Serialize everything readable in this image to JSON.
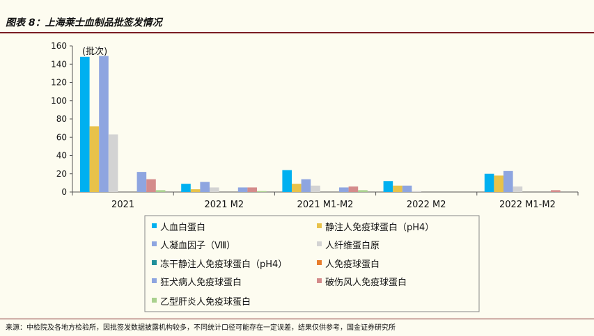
{
  "header": {
    "title": "图表 8：上海莱士血制品批签发情况"
  },
  "footer": {
    "source": "来源：中检院及各地方检验所，因批签发数据披露机构较多，不同统计口径可能存在一定误差，结果仅供参考，国金证券研究所"
  },
  "chart_data": {
    "type": "bar",
    "unit_label": "(批次)",
    "ylim": [
      0,
      160
    ],
    "yticks": [
      0,
      20,
      40,
      60,
      80,
      100,
      120,
      140,
      160
    ],
    "categories": [
      "2021",
      "2021 M2",
      "2021 M1-M2",
      "2022 M2",
      "2022 M1-M2"
    ],
    "legend_position": "bottom",
    "series": [
      {
        "name": "人血白蛋白",
        "color": "#00b0f0",
        "values": [
          148,
          9,
          24,
          12,
          20
        ]
      },
      {
        "name": "静注人免疫球蛋白（pH4）",
        "color": "#e8c24a",
        "values": [
          72,
          3,
          9,
          7,
          18
        ]
      },
      {
        "name": "人凝血因子（Ⅷ）",
        "color": "#8ea5e0",
        "values": [
          149,
          11,
          14,
          7,
          23
        ]
      },
      {
        "name": "人纤维蛋白原",
        "color": "#d3d3d3",
        "values": [
          63,
          5,
          7,
          1,
          6
        ]
      },
      {
        "name": "冻干静注人免疫球蛋白（pH4）",
        "color": "#1f8f9a",
        "values": [
          0,
          0,
          0,
          0,
          0
        ]
      },
      {
        "name": "人免疫球蛋白",
        "color": "#e87d2c",
        "values": [
          0,
          0,
          0,
          0,
          0
        ]
      },
      {
        "name": "狂犬病人免疫球蛋白",
        "color": "#8ea5e0",
        "values": [
          22,
          5,
          5,
          0,
          0
        ]
      },
      {
        "name": "破伤风人免疫球蛋白",
        "color": "#d48b8b",
        "values": [
          14,
          5,
          6,
          0,
          2
        ]
      },
      {
        "name": "乙型肝炎人免疫球蛋白",
        "color": "#a9d18e",
        "values": [
          2,
          1,
          2,
          0,
          0
        ]
      }
    ]
  }
}
